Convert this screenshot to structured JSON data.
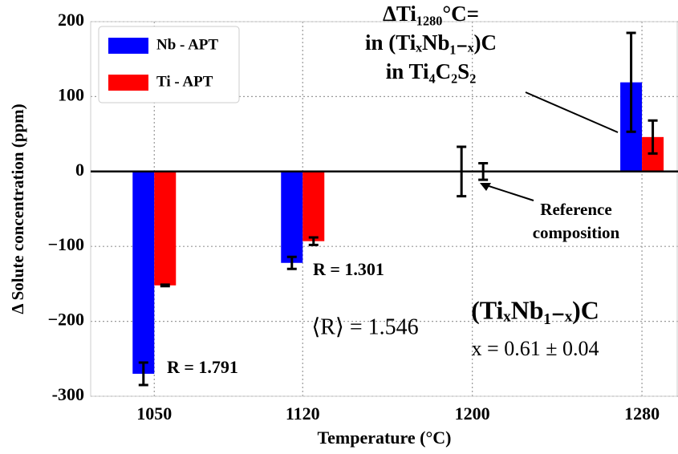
{
  "chart_data": {
    "type": "bar",
    "xlabel": "Temperature (°C)",
    "ylabel": "Δ Solute concentration (ppm)",
    "x": [
      1050,
      1120,
      1200,
      1280
    ],
    "xlim": [
      1020,
      1297
    ],
    "xticks": [
      1050,
      1120,
      1200,
      1280
    ],
    "ylim": [
      -300,
      200
    ],
    "yticks": [
      -300,
      {
        "value": -200,
        "label": "−200"
      },
      {
        "value": -100,
        "label": "−100"
      },
      0,
      100,
      200
    ],
    "yticks_fix": null,
    "grid": true,
    "legend": "upper left",
    "series": [
      {
        "name": "Nb - APT",
        "color": "#0000ff",
        "values": [
          -270,
          -122,
          0,
          119
        ],
        "errors": [
          15,
          8,
          33,
          66
        ]
      },
      {
        "name": "Ti - APT",
        "color": "#ff0000",
        "values": [
          -152,
          -93,
          0,
          46
        ],
        "errors": [
          1,
          5,
          11,
          22
        ]
      }
    ],
    "annotations": {
      "r_1050": "R = 1.791",
      "r_1120": "R = 1.301",
      "r_mean": "⟨R⟩ = 1.546",
      "compound": "(TiₓNb₁₋ₓ)C",
      "x_value": "x = 0.61 ± 0.04",
      "delta_title": [
        "ΔTi₁₂₈₀°C=",
        "in (TiₓNb₁₋ₓ)C",
        "in Ti₄C₂S₂"
      ],
      "reference": [
        "Reference",
        "composition"
      ]
    }
  }
}
